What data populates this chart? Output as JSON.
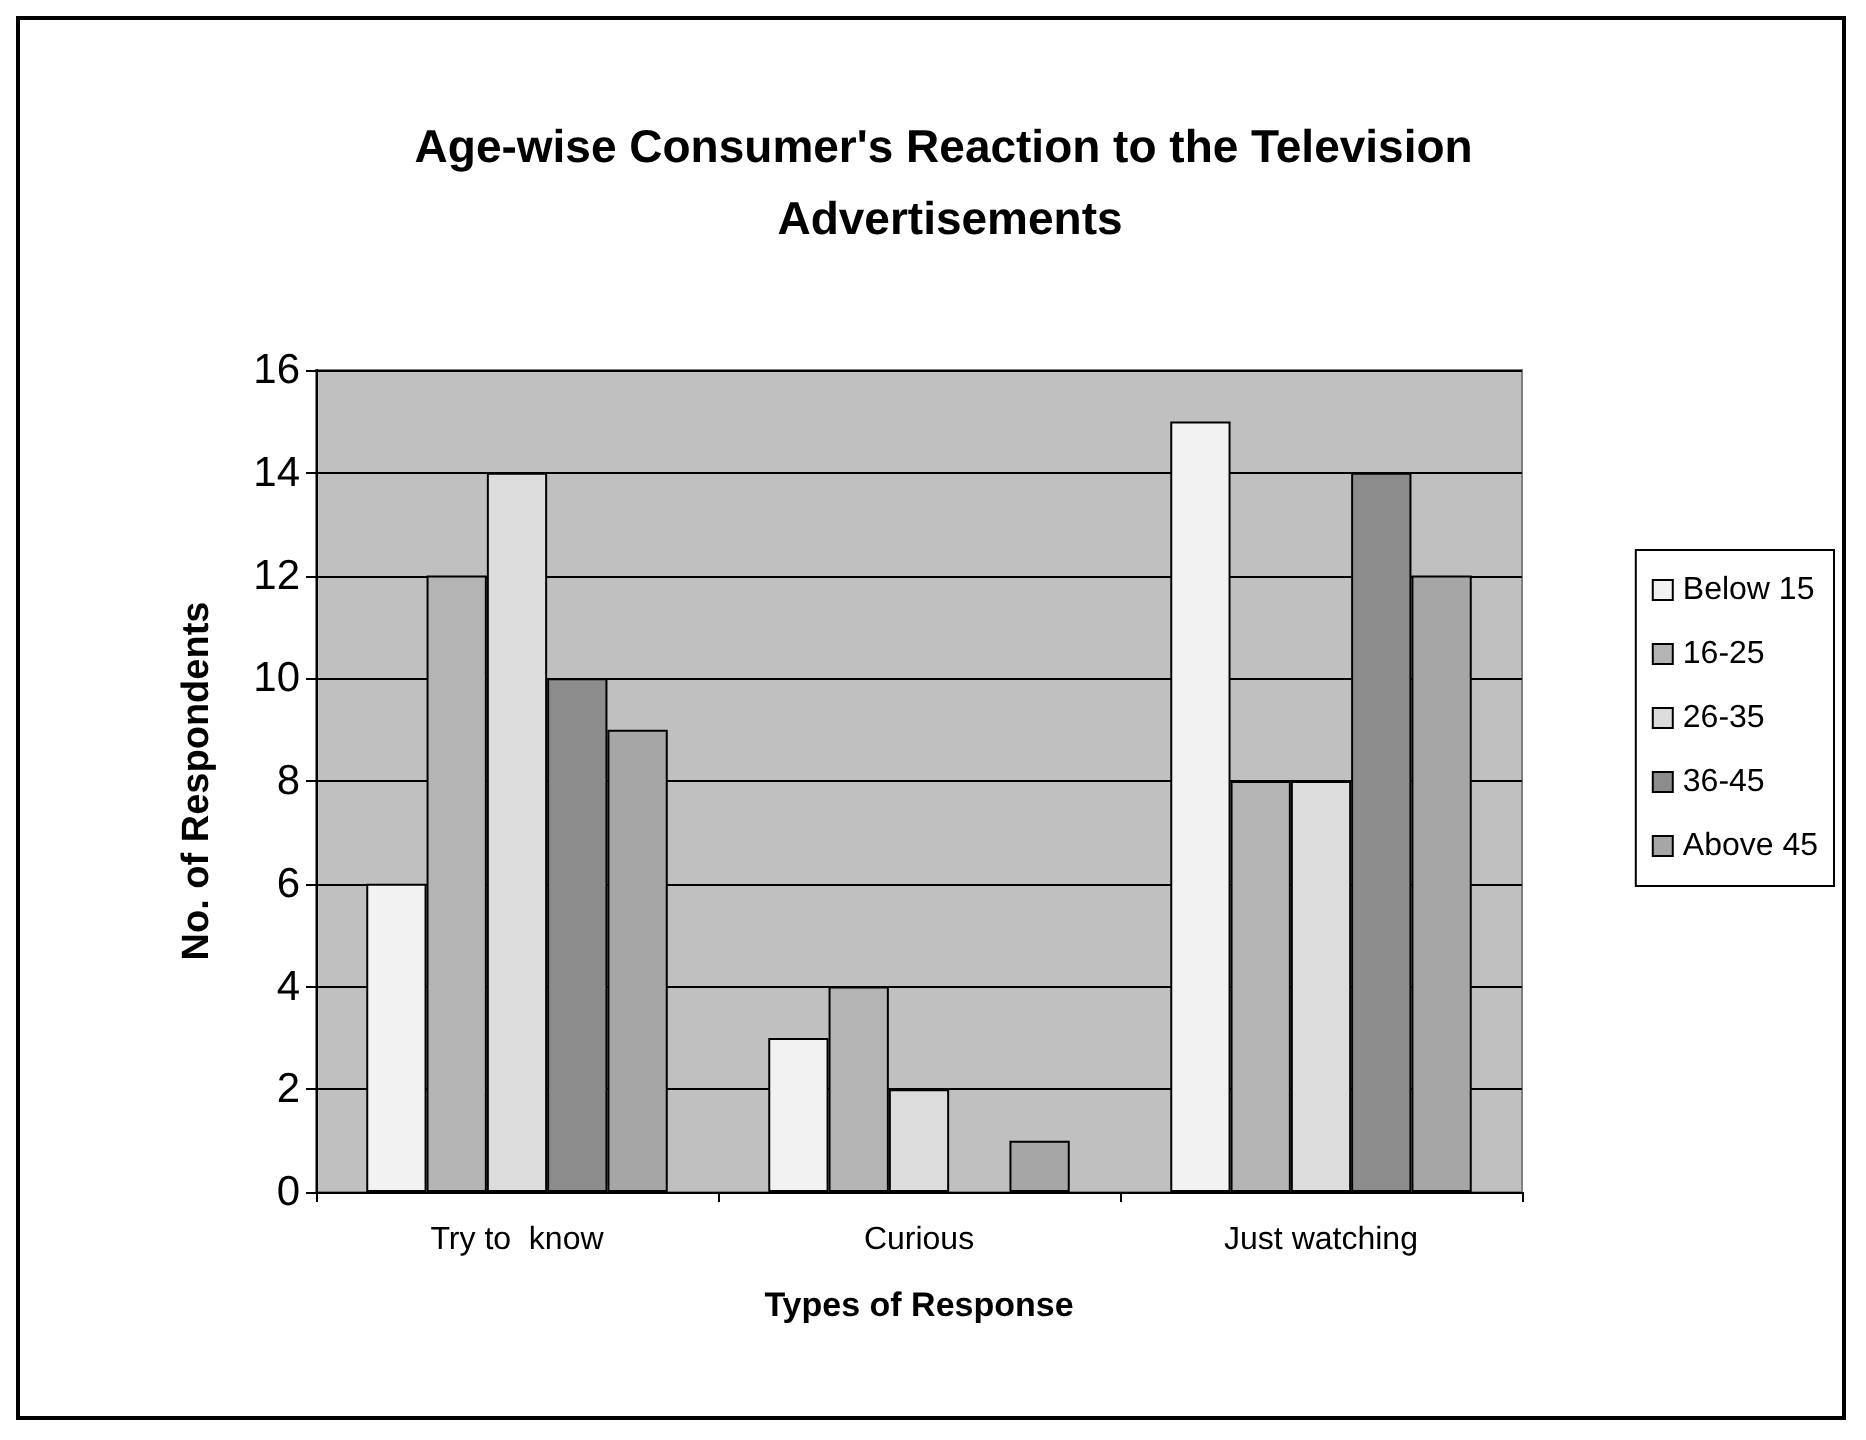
{
  "chart_data": {
    "type": "bar",
    "title": "Age-wise Consumer's Reaction to the Television Advertisements",
    "xlabel": "Types of Response",
    "ylabel": "No. of Respondents",
    "categories": [
      "Try to  know",
      "Curious",
      "Just watching"
    ],
    "series": [
      {
        "name": "Below 15",
        "color": "#f2f2f2",
        "values": [
          6,
          3,
          15
        ]
      },
      {
        "name": "16-25",
        "color": "#b4b4b4",
        "values": [
          12,
          4,
          8
        ]
      },
      {
        "name": "26-35",
        "color": "#dcdcdc",
        "values": [
          14,
          2,
          8
        ]
      },
      {
        "name": "36-45",
        "color": "#8c8c8c",
        "values": [
          10,
          0,
          14
        ]
      },
      {
        "name": "Above 45",
        "color": "#a6a6a6",
        "values": [
          9,
          1,
          12
        ]
      }
    ],
    "ylim": [
      0,
      16
    ],
    "yticks": [
      0,
      2,
      4,
      6,
      8,
      10,
      12,
      14,
      16
    ],
    "grid": "y",
    "legend": "right"
  }
}
